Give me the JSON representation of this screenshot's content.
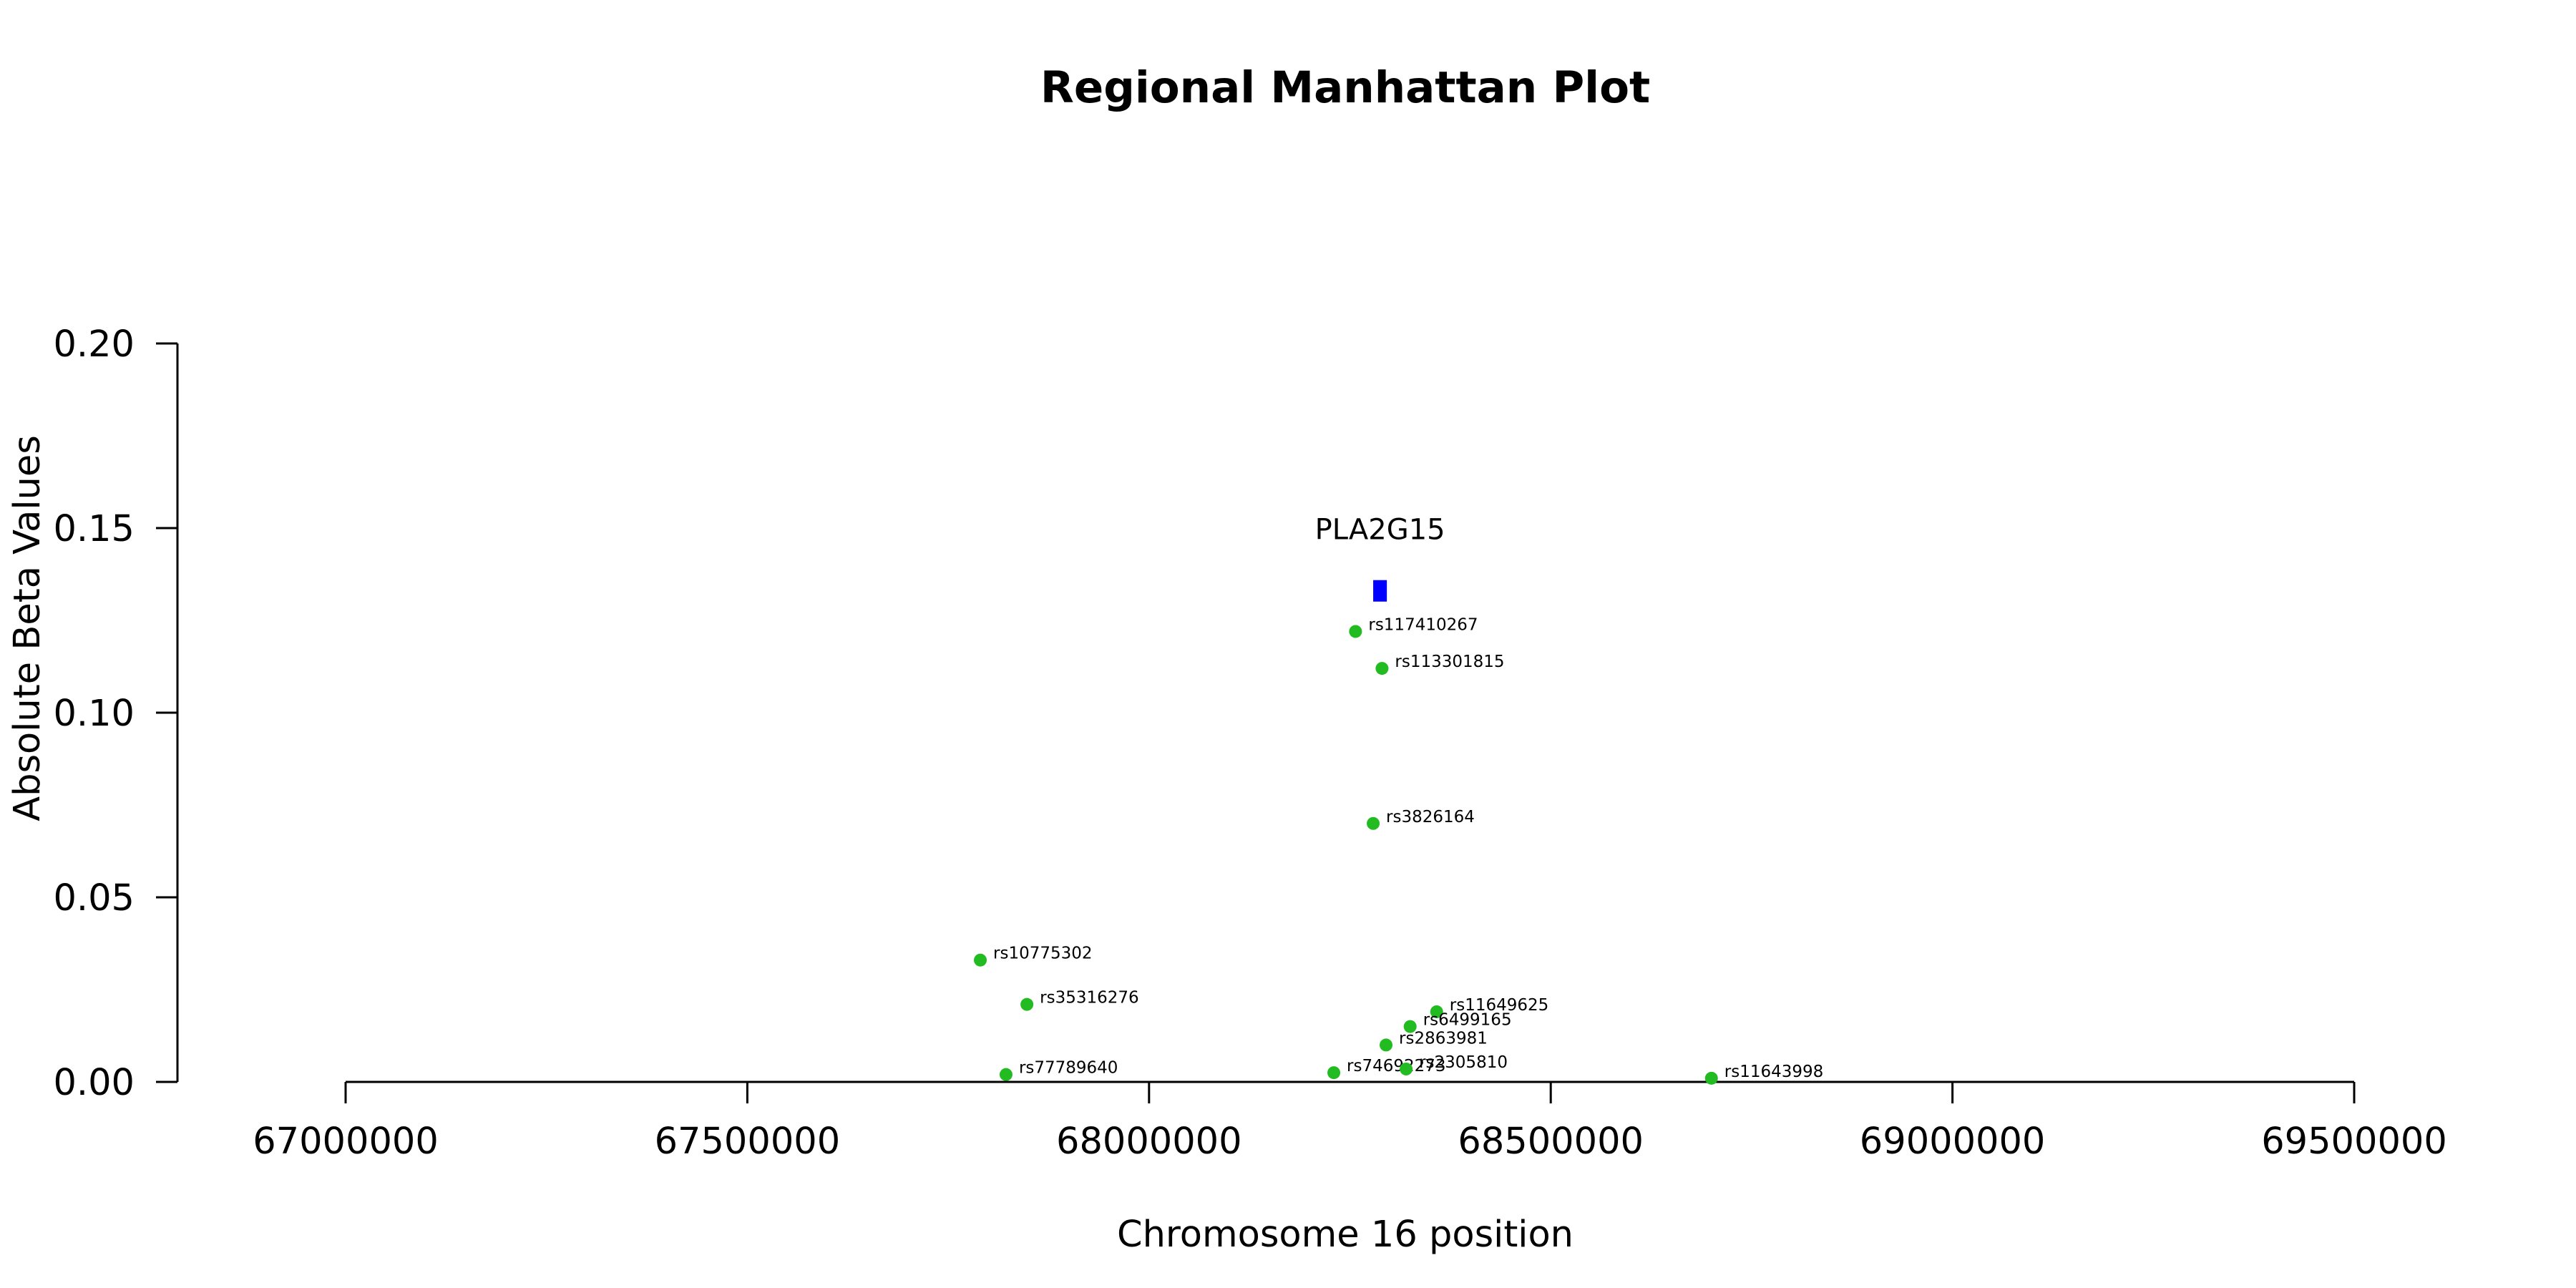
{
  "chart_data": {
    "type": "scatter",
    "title": "Regional Manhattan Plot",
    "xlabel": "Chromosome 16 position",
    "ylabel": "Absolute Beta Values",
    "xlim": [
      67000000,
      69500000
    ],
    "ylim": [
      0,
      0.2
    ],
    "x_ticks": [
      67000000,
      67500000,
      68000000,
      68500000,
      69000000,
      69500000
    ],
    "x_tick_labels": [
      "67000000",
      "67500000",
      "68000000",
      "68500000",
      "69000000",
      "69500000"
    ],
    "y_ticks": [
      0,
      0.05,
      0.1,
      0.15,
      0.2
    ],
    "y_tick_labels": [
      "0.00",
      "0.05",
      "0.10",
      "0.15",
      "0.20"
    ],
    "grid": false,
    "point_color": "#22bb22",
    "gene_color": "#0000ff",
    "genes": [
      {
        "name": "PLA2G15",
        "start": 68279000,
        "end": 68296000,
        "y": 0.133
      }
    ],
    "points": [
      {
        "label": "rs117410267",
        "x": 68257000,
        "y": 0.122
      },
      {
        "label": "rs113301815",
        "x": 68290000,
        "y": 0.112
      },
      {
        "label": "rs3826164",
        "x": 68279000,
        "y": 0.07
      },
      {
        "label": "rs10775302",
        "x": 67790000,
        "y": 0.033
      },
      {
        "label": "rs35316276",
        "x": 67848000,
        "y": 0.021
      },
      {
        "label": "rs11649625",
        "x": 68358000,
        "y": 0.019
      },
      {
        "label": "rs6499165",
        "x": 68325000,
        "y": 0.015
      },
      {
        "label": "rs2863981",
        "x": 68295000,
        "y": 0.01
      },
      {
        "label": "rs77789640",
        "x": 67822000,
        "y": 0.002
      },
      {
        "label": "rs74692273",
        "x": 68230000,
        "y": 0.0025
      },
      {
        "label": "rs2305810",
        "x": 68320000,
        "y": 0.0035
      },
      {
        "label": "rs11643998",
        "x": 68700000,
        "y": 0.001
      }
    ]
  }
}
